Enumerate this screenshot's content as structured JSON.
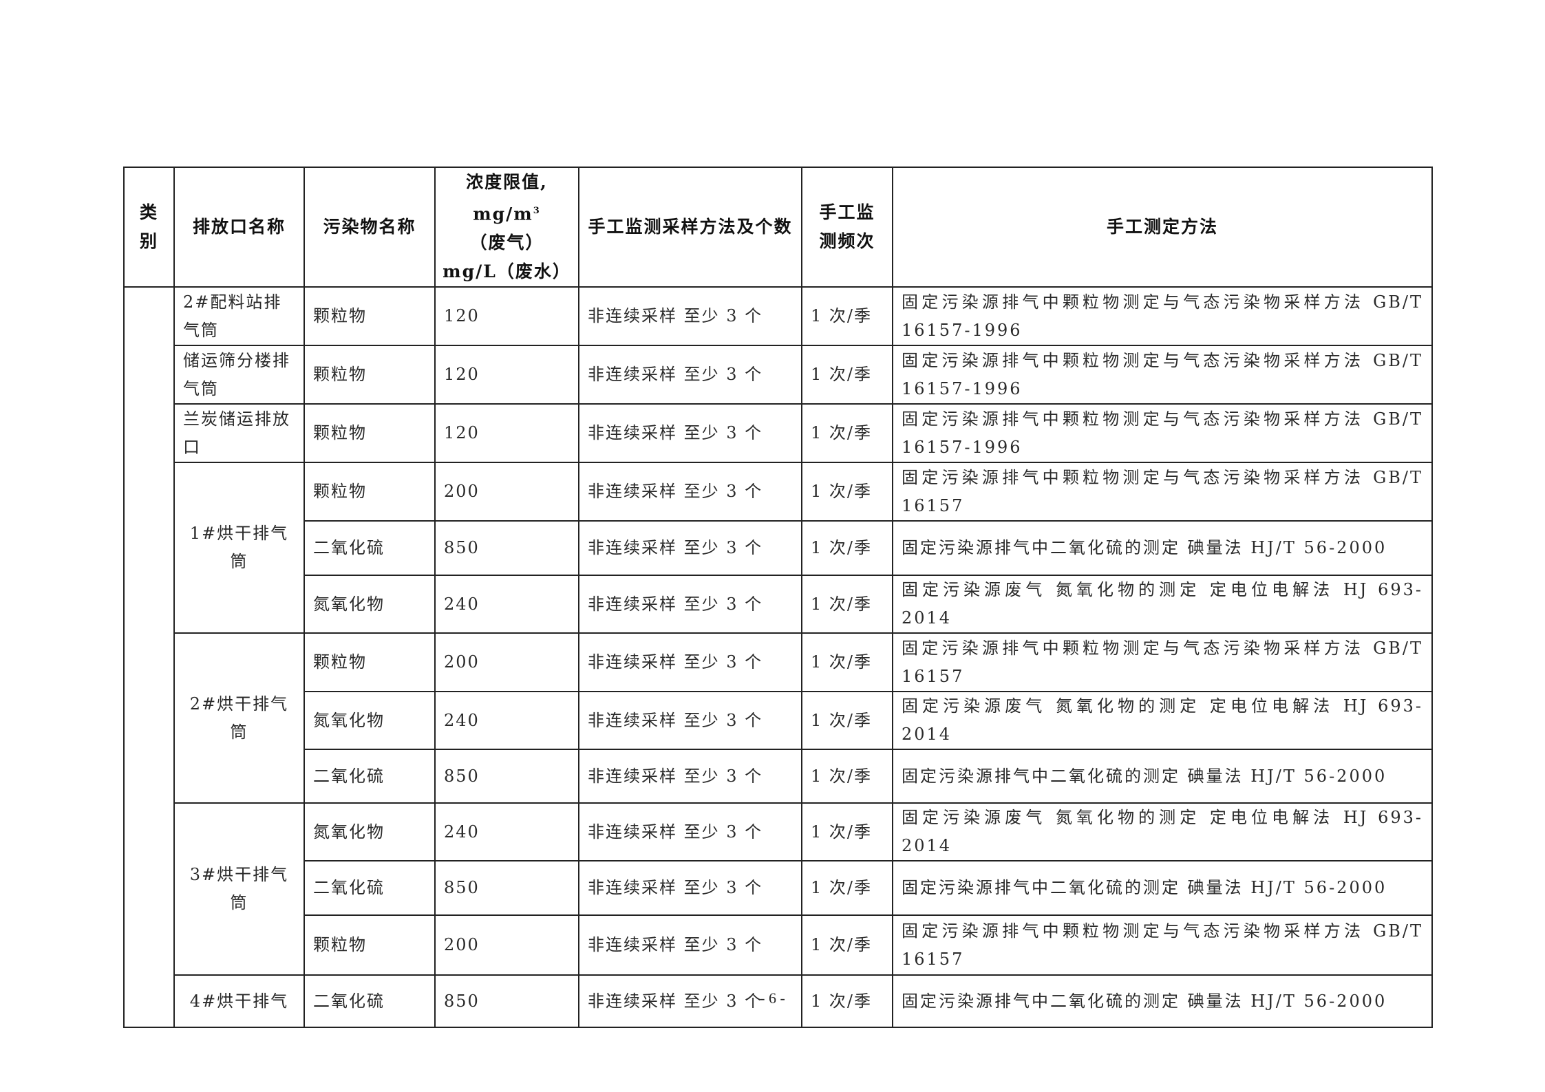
{
  "header": {
    "category": "类别",
    "outlet": "排放口名称",
    "pollutant": "污染物名称",
    "limit_line1": "浓度限值,",
    "limit_line2_prefix": "mg/m",
    "limit_line2_sup": "3",
    "limit_line2_suffix": "（废气）",
    "limit_line3": "mg/L（废水）",
    "sampling": "手工监测采样方法及个数",
    "frequency": "手工监测频次",
    "method": "手工测定方法"
  },
  "rows": [
    {
      "outlet": "2#配料站排气筒",
      "span": 1,
      "pollutant": "颗粒物",
      "limit": "120",
      "sampling": "非连续采样 至少 3 个",
      "frequency": "1 次/季",
      "method": "固定污染源排气中颗粒物测定与气态污染物采样方法 GB/T 16157-1996"
    },
    {
      "outlet": "储运筛分楼排气筒",
      "span": 1,
      "pollutant": "颗粒物",
      "limit": "120",
      "sampling": "非连续采样 至少 3 个",
      "frequency": "1 次/季",
      "method": "固定污染源排气中颗粒物测定与气态污染物采样方法 GB/T 16157-1996"
    },
    {
      "outlet": "兰炭储运排放口",
      "span": 1,
      "pollutant": "颗粒物",
      "limit": "120",
      "sampling": "非连续采样 至少 3 个",
      "frequency": "1 次/季",
      "method": "固定污染源排气中颗粒物测定与气态污染物采样方法 GB/T 16157-1996"
    },
    {
      "outlet": "1#烘干排气筒",
      "span": 3,
      "pollutant": "颗粒物",
      "limit": "200",
      "sampling": "非连续采样 至少 3 个",
      "frequency": "1 次/季",
      "method": "固定污染源排气中颗粒物测定与气态污染物采样方法 GB/T 16157"
    },
    {
      "pollutant": "二氧化硫",
      "limit": "850",
      "sampling": "非连续采样 至少 3 个",
      "frequency": "1 次/季",
      "method": "固定污染源排气中二氧化硫的测定 碘量法 HJ/T 56-2000"
    },
    {
      "pollutant": "氮氧化物",
      "limit": "240",
      "sampling": "非连续采样 至少 3 个",
      "frequency": "1 次/季",
      "method": "固定污染源废气 氮氧化物的测定 定电位电解法 HJ 693-2014"
    },
    {
      "outlet": "2#烘干排气筒",
      "span": 3,
      "pollutant": "颗粒物",
      "limit": "200",
      "sampling": "非连续采样 至少 3 个",
      "frequency": "1 次/季",
      "method": "固定污染源排气中颗粒物测定与气态污染物采样方法 GB/T 16157"
    },
    {
      "pollutant": "氮氧化物",
      "limit": "240",
      "sampling": "非连续采样 至少 3 个",
      "frequency": "1 次/季",
      "method": "固定污染源废气 氮氧化物的测定 定电位电解法 HJ 693-2014"
    },
    {
      "pollutant": "二氧化硫",
      "limit": "850",
      "sampling": "非连续采样 至少 3 个",
      "frequency": "1 次/季",
      "method": "固定污染源排气中二氧化硫的测定 碘量法 HJ/T 56-2000"
    },
    {
      "outlet": "3#烘干排气筒",
      "span": 3,
      "pollutant": "氮氧化物",
      "limit": "240",
      "sampling": "非连续采样 至少 3 个",
      "frequency": "1 次/季",
      "method": "固定污染源废气 氮氧化物的测定 定电位电解法 HJ 693-2014"
    },
    {
      "pollutant": "二氧化硫",
      "limit": "850",
      "sampling": "非连续采样 至少 3 个",
      "frequency": "1 次/季",
      "method": "固定污染源排气中二氧化硫的测定 碘量法 HJ/T 56-2000"
    },
    {
      "pollutant": "颗粒物",
      "limit": "200",
      "sampling": "非连续采样 至少 3 个",
      "frequency": "1 次/季",
      "method": "固定污染源排气中颗粒物测定与气态污染物采样方法 GB/T 16157"
    },
    {
      "outlet": "4#烘干排气",
      "span": 1,
      "pollutant": "二氧化硫",
      "limit": "850",
      "sampling": "非连续采样 至少 3 个",
      "frequency": "1 次/季",
      "method": "固定污染源排气中二氧化硫的测定 碘量法 HJ/T 56-2000"
    }
  ],
  "page_number": "- 6 -"
}
